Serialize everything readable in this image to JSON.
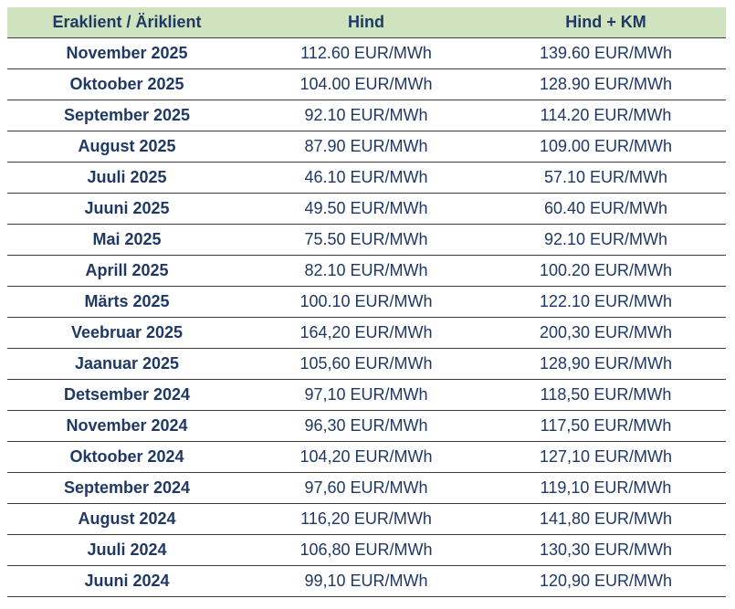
{
  "table": {
    "header": [
      "Eraklient / Äriklient",
      "Hind",
      "Hind + KM"
    ],
    "rows": [
      [
        "November 2025",
        "112.60 EUR/MWh",
        "139.60 EUR/MWh"
      ],
      [
        "Oktoober 2025",
        "104.00 EUR/MWh",
        "128.90 EUR/MWh"
      ],
      [
        "September 2025",
        "92.10 EUR/MWh",
        "114.20 EUR/MWh"
      ],
      [
        "August 2025",
        "87.90 EUR/MWh",
        "109.00 EUR/MWh"
      ],
      [
        "Juuli 2025",
        "46.10 EUR/MWh",
        "57.10 EUR/MWh"
      ],
      [
        "Juuni 2025",
        "49.50 EUR/MWh",
        "60.40 EUR/MWh"
      ],
      [
        "Mai 2025",
        "75.50 EUR/MWh",
        "92.10 EUR/MWh"
      ],
      [
        "Aprill 2025",
        "82.10 EUR/MWh",
        "100.20 EUR/MWh"
      ],
      [
        "Märts 2025",
        "100.10 EUR/MWh",
        "122.10 EUR/MWh"
      ],
      [
        "Veebruar 2025",
        "164,20 EUR/MWh",
        "200,30 EUR/MWh"
      ],
      [
        "Jaanuar 2025",
        "105,60 EUR/MWh",
        "128,90 EUR/MWh"
      ],
      [
        "Detsember 2024",
        "97,10 EUR/MWh",
        "118,50 EUR/MWh"
      ],
      [
        "November 2024",
        "96,30 EUR/MWh",
        "117,50 EUR/MWh"
      ],
      [
        "Oktoober 2024",
        "104,20 EUR/MWh",
        "127,10 EUR/MWh"
      ],
      [
        "September 2024",
        "97,60 EUR/MWh",
        "119,10 EUR/MWh"
      ],
      [
        "August 2024",
        "116,20 EUR/MWh",
        "141,80 EUR/MWh"
      ],
      [
        "Juuli 2024",
        "106,80 EUR/MWh",
        "130,30 EUR/MWh"
      ],
      [
        "Juuni 2024",
        "99,10 EUR/MWh",
        "120,90 EUR/MWh"
      ]
    ]
  }
}
